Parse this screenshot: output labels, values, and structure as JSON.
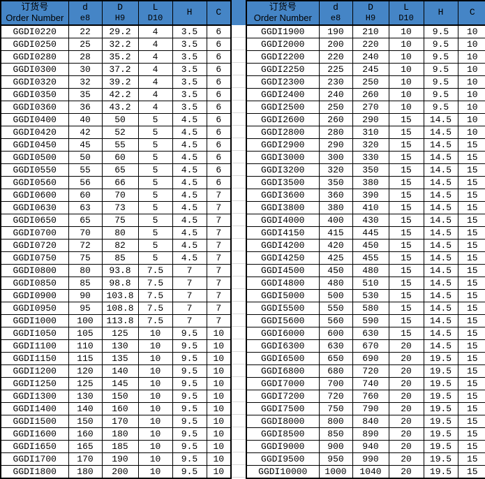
{
  "colors": {
    "header_bg": "#4585C6",
    "border": "#000000",
    "grid_line": "#D8D8D8",
    "row_bg": "#FFFFFF",
    "text": "#000000"
  },
  "header": {
    "order_number_zh": "订货号",
    "order_number_en": "Order Number",
    "d_label": "d",
    "d_tolerance": "e8",
    "D_label": "D",
    "D_tolerance": "H9",
    "L_label": "L",
    "L_tolerance": "D10",
    "H_label": "H",
    "C_label": "C"
  },
  "left_table": {
    "rows": [
      [
        "GGDI0220",
        "22",
        "29.2",
        "4",
        "3.5",
        "6"
      ],
      [
        "GGDI0250",
        "25",
        "32.2",
        "4",
        "3.5",
        "6"
      ],
      [
        "GGDI0280",
        "28",
        "35.2",
        "4",
        "3.5",
        "6"
      ],
      [
        "GGDI0300",
        "30",
        "37.2",
        "4",
        "3.5",
        "6"
      ],
      [
        "GGDI0320",
        "32",
        "39.2",
        "4",
        "3.5",
        "6"
      ],
      [
        "GGDI0350",
        "35",
        "42.2",
        "4",
        "3.5",
        "6"
      ],
      [
        "GGDI0360",
        "36",
        "43.2",
        "4",
        "3.5",
        "6"
      ],
      [
        "GGDI0400",
        "40",
        "50",
        "5",
        "4.5",
        "6"
      ],
      [
        "GGDI0420",
        "42",
        "52",
        "5",
        "4.5",
        "6"
      ],
      [
        "GGDI0450",
        "45",
        "55",
        "5",
        "4.5",
        "6"
      ],
      [
        "GGDI0500",
        "50",
        "60",
        "5",
        "4.5",
        "6"
      ],
      [
        "GGDI0550",
        "55",
        "65",
        "5",
        "4.5",
        "6"
      ],
      [
        "GGDI0560",
        "56",
        "66",
        "5",
        "4.5",
        "6"
      ],
      [
        "GGDI0600",
        "60",
        "70",
        "5",
        "4.5",
        "7"
      ],
      [
        "GGDI0630",
        "63",
        "73",
        "5",
        "4.5",
        "7"
      ],
      [
        "GGDI0650",
        "65",
        "75",
        "5",
        "4.5",
        "7"
      ],
      [
        "GGDI0700",
        "70",
        "80",
        "5",
        "4.5",
        "7"
      ],
      [
        "GGDI0720",
        "72",
        "82",
        "5",
        "4.5",
        "7"
      ],
      [
        "GGDI0750",
        "75",
        "85",
        "5",
        "4.5",
        "7"
      ],
      [
        "GGDI0800",
        "80",
        "93.8",
        "7.5",
        "7",
        "7"
      ],
      [
        "GGDI0850",
        "85",
        "98.8",
        "7.5",
        "7",
        "7"
      ],
      [
        "GGDI0900",
        "90",
        "103.8",
        "7.5",
        "7",
        "7"
      ],
      [
        "GGDI0950",
        "95",
        "108.8",
        "7.5",
        "7",
        "7"
      ],
      [
        "GGDI1000",
        "100",
        "113.8",
        "7.5",
        "7",
        "7"
      ],
      [
        "GGDI1050",
        "105",
        "125",
        "10",
        "9.5",
        "10"
      ],
      [
        "GGDI1100",
        "110",
        "130",
        "10",
        "9.5",
        "10"
      ],
      [
        "GGDI1150",
        "115",
        "135",
        "10",
        "9.5",
        "10"
      ],
      [
        "GGDI1200",
        "120",
        "140",
        "10",
        "9.5",
        "10"
      ],
      [
        "GGDI1250",
        "125",
        "145",
        "10",
        "9.5",
        "10"
      ],
      [
        "GGDI1300",
        "130",
        "150",
        "10",
        "9.5",
        "10"
      ],
      [
        "GGDI1400",
        "140",
        "160",
        "10",
        "9.5",
        "10"
      ],
      [
        "GGDI1500",
        "150",
        "170",
        "10",
        "9.5",
        "10"
      ],
      [
        "GGDI1600",
        "160",
        "180",
        "10",
        "9.5",
        "10"
      ],
      [
        "GGDI1650",
        "165",
        "185",
        "10",
        "9.5",
        "10"
      ],
      [
        "GGDI1700",
        "170",
        "190",
        "10",
        "9.5",
        "10"
      ],
      [
        "GGDI1800",
        "180",
        "200",
        "10",
        "9.5",
        "10"
      ]
    ]
  },
  "right_table": {
    "rows": [
      [
        "GGDI1900",
        "190",
        "210",
        "10",
        "9.5",
        "10"
      ],
      [
        "GGDI2000",
        "200",
        "220",
        "10",
        "9.5",
        "10"
      ],
      [
        "GGDI2200",
        "220",
        "240",
        "10",
        "9.5",
        "10"
      ],
      [
        "GGDI2250",
        "225",
        "245",
        "10",
        "9.5",
        "10"
      ],
      [
        "GGDI2300",
        "230",
        "250",
        "10",
        "9.5",
        "10"
      ],
      [
        "GGDI2400",
        "240",
        "260",
        "10",
        "9.5",
        "10"
      ],
      [
        "GGDI2500",
        "250",
        "270",
        "10",
        "9.5",
        "10"
      ],
      [
        "GGDI2600",
        "260",
        "290",
        "15",
        "14.5",
        "10"
      ],
      [
        "GGDI2800",
        "280",
        "310",
        "15",
        "14.5",
        "10"
      ],
      [
        "GGDI2900",
        "290",
        "320",
        "15",
        "14.5",
        "15"
      ],
      [
        "GGDI3000",
        "300",
        "330",
        "15",
        "14.5",
        "15"
      ],
      [
        "GGDI3200",
        "320",
        "350",
        "15",
        "14.5",
        "15"
      ],
      [
        "GGDI3500",
        "350",
        "380",
        "15",
        "14.5",
        "15"
      ],
      [
        "GGDI3600",
        "360",
        "390",
        "15",
        "14.5",
        "15"
      ],
      [
        "GGDI3800",
        "380",
        "410",
        "15",
        "14.5",
        "15"
      ],
      [
        "GGDI4000",
        "400",
        "430",
        "15",
        "14.5",
        "15"
      ],
      [
        "GGDI4150",
        "415",
        "445",
        "15",
        "14.5",
        "15"
      ],
      [
        "GGDI4200",
        "420",
        "450",
        "15",
        "14.5",
        "15"
      ],
      [
        "GGDI4250",
        "425",
        "455",
        "15",
        "14.5",
        "15"
      ],
      [
        "GGDI4500",
        "450",
        "480",
        "15",
        "14.5",
        "15"
      ],
      [
        "GGDI4800",
        "480",
        "510",
        "15",
        "14.5",
        "15"
      ],
      [
        "GGDI5000",
        "500",
        "530",
        "15",
        "14.5",
        "15"
      ],
      [
        "GGDI5500",
        "550",
        "580",
        "15",
        "14.5",
        "15"
      ],
      [
        "GGDI5600",
        "560",
        "590",
        "15",
        "14.5",
        "15"
      ],
      [
        "GGDI6000",
        "600",
        "630",
        "15",
        "14.5",
        "15"
      ],
      [
        "GGDI6300",
        "630",
        "670",
        "20",
        "14.5",
        "15"
      ],
      [
        "GGDI6500",
        "650",
        "690",
        "20",
        "19.5",
        "15"
      ],
      [
        "GGDI6800",
        "680",
        "720",
        "20",
        "19.5",
        "15"
      ],
      [
        "GGDI7000",
        "700",
        "740",
        "20",
        "19.5",
        "15"
      ],
      [
        "GGDI7200",
        "720",
        "760",
        "20",
        "19.5",
        "15"
      ],
      [
        "GGDI7500",
        "750",
        "790",
        "20",
        "19.5",
        "15"
      ],
      [
        "GGDI8000",
        "800",
        "840",
        "20",
        "19.5",
        "15"
      ],
      [
        "GGDI8500",
        "850",
        "890",
        "20",
        "19.5",
        "15"
      ],
      [
        "GGDI9000",
        "900",
        "940",
        "20",
        "19.5",
        "15"
      ],
      [
        "GGDI9500",
        "950",
        "990",
        "20",
        "19.5",
        "15"
      ],
      [
        "GGDI10000",
        "1000",
        "1040",
        "20",
        "19.5",
        "15"
      ]
    ]
  }
}
